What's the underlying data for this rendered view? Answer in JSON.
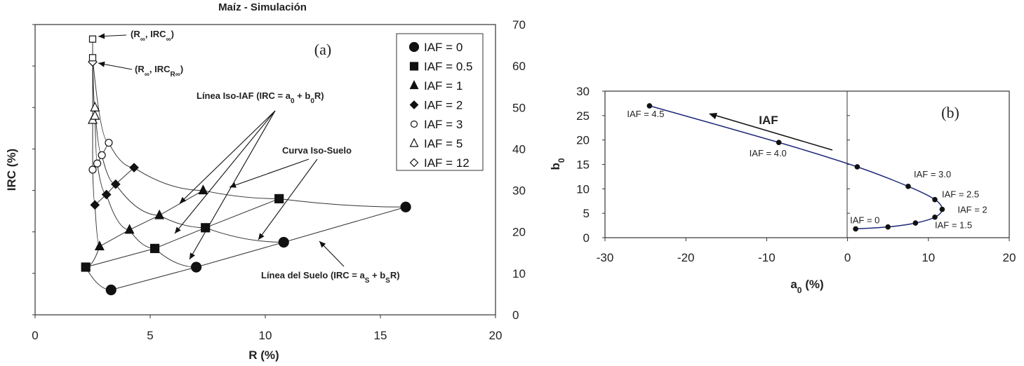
{
  "chart_data": [
    {
      "id": "a",
      "type": "scatter",
      "panel_label": "(a)",
      "title": "Maíz - Simulación",
      "xlabel": "R (%)",
      "ylabel": "IRC (%)",
      "xlim": [
        0,
        20
      ],
      "ylim": [
        0,
        70
      ],
      "xticks": [
        0,
        5,
        10,
        15,
        20
      ],
      "yticks_right": [
        0,
        10,
        20,
        30,
        40,
        50,
        60,
        70
      ],
      "y_tick_marks_left": [
        0,
        10,
        20,
        30,
        40,
        50,
        60,
        70
      ],
      "grid": false,
      "legend_position": "top-right",
      "series": [
        {
          "name": "IAF = 0",
          "marker": "circle-filled",
          "points": [
            [
              3.3,
              6
            ],
            [
              7.0,
              11.5
            ],
            [
              10.8,
              17.5
            ],
            [
              16.1,
              26
            ]
          ]
        },
        {
          "name": "IAF = 0.5",
          "marker": "square-filled",
          "points": [
            [
              2.2,
              11.5
            ],
            [
              5.2,
              16
            ],
            [
              7.4,
              21
            ],
            [
              10.6,
              28
            ]
          ]
        },
        {
          "name": "IAF = 1",
          "marker": "triangle-filled",
          "points": [
            [
              2.8,
              16.5
            ],
            [
              4.1,
              20.5
            ],
            [
              5.4,
              24
            ],
            [
              7.3,
              30
            ]
          ]
        },
        {
          "name": "IAF = 2",
          "marker": "diamond-filled",
          "points": [
            [
              2.6,
              26.5
            ],
            [
              3.1,
              29
            ],
            [
              3.5,
              31.5
            ],
            [
              4.3,
              35.5
            ]
          ]
        },
        {
          "name": "IAF = 3",
          "marker": "circle-open",
          "points": [
            [
              2.5,
              35
            ],
            [
              2.7,
              36.5
            ],
            [
              2.9,
              38.5
            ],
            [
              3.2,
              41.5
            ]
          ]
        },
        {
          "name": "IAF = 5",
          "marker": "triangle-open",
          "points": [
            [
              2.5,
              47
            ],
            [
              2.6,
              48
            ],
            [
              2.6,
              50
            ]
          ]
        },
        {
          "name": "IAF = 12",
          "marker": "diamond-open",
          "points": [
            [
              2.5,
              61
            ]
          ]
        }
      ],
      "extra_markers": [
        {
          "label": "(R∞, IRC∞)",
          "marker": "square-open",
          "x": 2.5,
          "y": 66.5
        },
        {
          "label": "(R∞, IRCR∞)",
          "marker": "square-open",
          "x": 2.5,
          "y": 62
        }
      ],
      "annotations": [
        {
          "text": "Línea Iso-IAF (IRC = a0 + b0R)"
        },
        {
          "text": "Curva Iso-Suelo"
        },
        {
          "text": "Línea del Suelo (IRC = aS + bSR)"
        }
      ]
    },
    {
      "id": "b",
      "type": "line",
      "panel_label": "(b)",
      "xlabel": "a0 (%)",
      "ylabel": "b0",
      "xlim": [
        -30,
        20
      ],
      "ylim": [
        0,
        30
      ],
      "xticks": [
        -30,
        -20,
        -10,
        0,
        10,
        20
      ],
      "yticks": [
        0,
        5,
        10,
        15,
        20,
        25,
        30
      ],
      "grid": false,
      "arrow_label": "IAF",
      "points": [
        {
          "x": -24.5,
          "y": 27.0,
          "label": "IAF = 4.5"
        },
        {
          "x": -8.5,
          "y": 19.5,
          "label": "IAF = 4.0"
        },
        {
          "x": 1.2,
          "y": 14.5,
          "label": ""
        },
        {
          "x": 7.5,
          "y": 10.5,
          "label": "IAF = 3.0"
        },
        {
          "x": 10.8,
          "y": 7.8,
          "label": "IAF = 2.5"
        },
        {
          "x": 11.7,
          "y": 5.8,
          "label": "IAF = 2"
        },
        {
          "x": 10.8,
          "y": 4.2,
          "label": "IAF = 1.5"
        },
        {
          "x": 8.4,
          "y": 3.0,
          "label": ""
        },
        {
          "x": 5.0,
          "y": 2.2,
          "label": ""
        },
        {
          "x": 1.0,
          "y": 1.8,
          "label": "IAF = 0"
        }
      ]
    }
  ]
}
